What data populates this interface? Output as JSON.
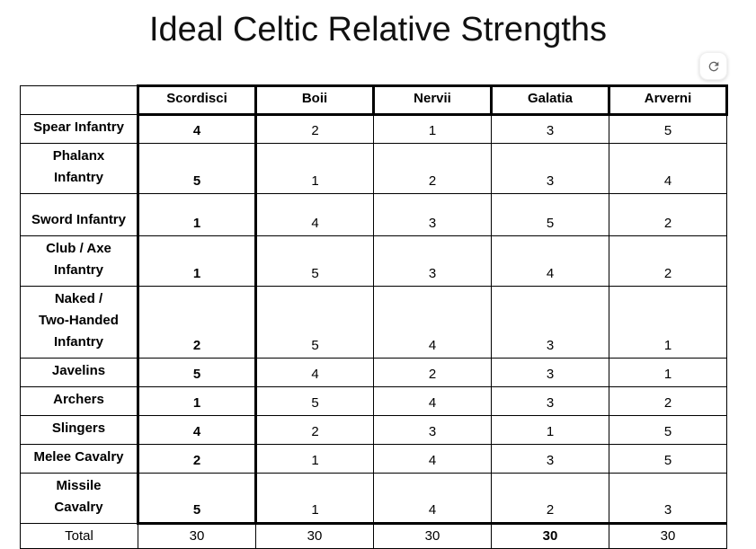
{
  "title": "Ideal Celtic Relative Strengths",
  "refresh_button": {
    "icon": "refresh-icon"
  },
  "table": {
    "corner_label": "",
    "columns": [
      "Scordisci",
      "Boii",
      "Nervii",
      "Galatia",
      "Arverni"
    ],
    "bold_column_index": 0,
    "rows": [
      {
        "label": "Spear Infantry",
        "values": [
          4,
          2,
          1,
          3,
          5
        ]
      },
      {
        "label": "Phalanx\nInfantry",
        "values": [
          5,
          1,
          2,
          3,
          4
        ]
      },
      {
        "label": "Sword Infantry",
        "values": [
          1,
          4,
          3,
          5,
          2
        ]
      },
      {
        "label": "Club / Axe\nInfantry",
        "values": [
          1,
          5,
          3,
          4,
          2
        ]
      },
      {
        "label": "Naked /\nTwo-Handed\nInfantry",
        "values": [
          2,
          5,
          4,
          3,
          1
        ]
      },
      {
        "label": "Javelins",
        "values": [
          5,
          4,
          2,
          3,
          1
        ]
      },
      {
        "label": "Archers",
        "values": [
          1,
          5,
          4,
          3,
          2
        ]
      },
      {
        "label": "Slingers",
        "values": [
          4,
          2,
          3,
          1,
          5
        ]
      },
      {
        "label": "Melee Cavalry",
        "values": [
          2,
          1,
          4,
          3,
          5
        ]
      },
      {
        "label": "Missile\nCavalry",
        "values": [
          5,
          1,
          4,
          2,
          3
        ]
      }
    ],
    "total_row": {
      "label": "Total",
      "values": [
        30,
        30,
        30,
        30,
        30
      ],
      "bold_value_index": 3
    }
  },
  "colors": {
    "border": "#000000",
    "text": "#000000",
    "icon_gray": "#666666"
  }
}
